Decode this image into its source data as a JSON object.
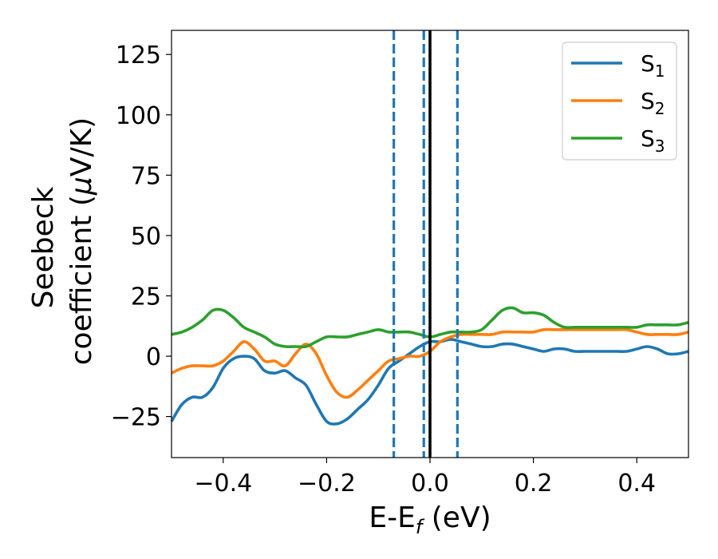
{
  "chart_data": {
    "type": "line",
    "xlabel": {
      "main": "E-E",
      "sub": "f",
      "unit": " (eV)"
    },
    "ylabel": {
      "line1": "Seebeck",
      "line2_pre": "coefficient  (",
      "line2_mu": "μ",
      "line2_post": "V/K)"
    },
    "xlim": [
      -0.5,
      0.5
    ],
    "ylim": [
      -42,
      135
    ],
    "xticks": [
      -0.4,
      -0.2,
      0.0,
      0.2,
      0.4
    ],
    "xtick_labels": [
      "−0.4",
      "−0.2",
      "0.0",
      "0.2",
      "0.4"
    ],
    "yticks": [
      -25,
      0,
      25,
      50,
      75,
      100,
      125
    ],
    "ytick_labels": [
      "−25",
      "0",
      "25",
      "50",
      "75",
      "100",
      "125"
    ],
    "grid": false,
    "legend_position": "top-right",
    "vlines": [
      {
        "x": -0.07,
        "style": "dashed",
        "color": "#1f77b4"
      },
      {
        "x": -0.012,
        "style": "dashed",
        "color": "#1f77b4"
      },
      {
        "x": 0.0,
        "style": "solid",
        "color": "#000000"
      },
      {
        "x": 0.053,
        "style": "dashed",
        "color": "#1f77b4"
      }
    ],
    "series": [
      {
        "name": "S",
        "sub": "1",
        "color": "#1f77b4",
        "x": [
          -0.5,
          -0.48,
          -0.46,
          -0.44,
          -0.42,
          -0.4,
          -0.38,
          -0.36,
          -0.34,
          -0.32,
          -0.3,
          -0.28,
          -0.26,
          -0.24,
          -0.22,
          -0.2,
          -0.18,
          -0.16,
          -0.14,
          -0.12,
          -0.1,
          -0.08,
          -0.06,
          -0.04,
          -0.02,
          0.0,
          0.02,
          0.04,
          0.06,
          0.08,
          0.1,
          0.12,
          0.14,
          0.16,
          0.18,
          0.2,
          0.22,
          0.24,
          0.26,
          0.28,
          0.3,
          0.32,
          0.34,
          0.36,
          0.38,
          0.4,
          0.42,
          0.44,
          0.46,
          0.48,
          0.5
        ],
        "y": [
          -27,
          -20,
          -17,
          -17,
          -13,
          -5,
          -1,
          0,
          -1,
          -6,
          -7,
          -6,
          -9,
          -12,
          -20,
          -27,
          -28,
          -26,
          -22,
          -18,
          -12,
          -5,
          -2,
          1,
          4,
          6,
          6,
          7,
          6,
          5,
          4,
          4,
          5,
          5,
          4,
          3,
          2,
          3,
          3,
          2,
          2,
          2,
          2,
          2,
          2,
          3,
          4,
          3,
          1,
          1,
          2
        ]
      },
      {
        "name": "S",
        "sub": "2",
        "color": "#ff7f0e",
        "x": [
          -0.5,
          -0.48,
          -0.46,
          -0.44,
          -0.42,
          -0.4,
          -0.38,
          -0.36,
          -0.34,
          -0.32,
          -0.3,
          -0.28,
          -0.26,
          -0.24,
          -0.22,
          -0.2,
          -0.18,
          -0.16,
          -0.14,
          -0.12,
          -0.1,
          -0.08,
          -0.06,
          -0.04,
          -0.02,
          0.0,
          0.02,
          0.04,
          0.06,
          0.08,
          0.1,
          0.12,
          0.14,
          0.16,
          0.18,
          0.2,
          0.22,
          0.24,
          0.26,
          0.28,
          0.3,
          0.32,
          0.34,
          0.36,
          0.38,
          0.4,
          0.42,
          0.44,
          0.46,
          0.48,
          0.5
        ],
        "y": [
          -7,
          -5,
          -4,
          -4,
          -4,
          -2,
          2,
          6,
          3,
          -2,
          -2,
          -4,
          1,
          5,
          1,
          -8,
          -15,
          -17,
          -14,
          -10,
          -6,
          -2,
          -1,
          0,
          0,
          2,
          6,
          8,
          9,
          9,
          9,
          9,
          10,
          10,
          10,
          10,
          11,
          11,
          11,
          11,
          11,
          11,
          11,
          11,
          11,
          10,
          9,
          9,
          9,
          9,
          10
        ]
      },
      {
        "name": "S",
        "sub": "3",
        "color": "#2ca02c",
        "x": [
          -0.5,
          -0.48,
          -0.46,
          -0.44,
          -0.42,
          -0.4,
          -0.38,
          -0.36,
          -0.34,
          -0.32,
          -0.3,
          -0.28,
          -0.26,
          -0.24,
          -0.22,
          -0.2,
          -0.18,
          -0.16,
          -0.14,
          -0.12,
          -0.1,
          -0.08,
          -0.06,
          -0.04,
          -0.02,
          0.0,
          0.02,
          0.04,
          0.06,
          0.08,
          0.1,
          0.12,
          0.14,
          0.16,
          0.18,
          0.2,
          0.22,
          0.24,
          0.26,
          0.28,
          0.3,
          0.32,
          0.34,
          0.36,
          0.38,
          0.4,
          0.42,
          0.44,
          0.46,
          0.48,
          0.5
        ],
        "y": [
          9,
          10,
          12,
          15,
          19,
          19,
          16,
          12,
          10,
          8,
          5,
          4,
          4,
          4,
          6,
          8,
          8,
          8,
          9,
          10,
          11,
          10,
          10,
          10,
          9,
          8,
          9,
          10,
          10,
          10,
          11,
          15,
          19,
          20,
          18,
          18,
          17,
          14,
          12,
          12,
          12,
          12,
          12,
          12,
          12,
          12,
          13,
          13,
          13,
          13,
          14
        ]
      }
    ]
  }
}
